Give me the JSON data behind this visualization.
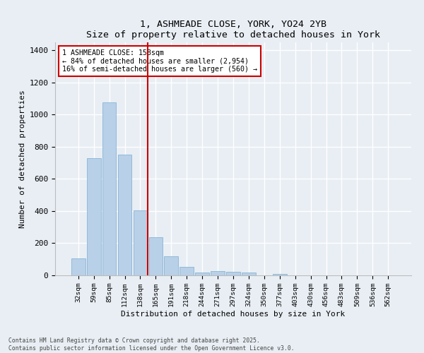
{
  "title1": "1, ASHMEADE CLOSE, YORK, YO24 2YB",
  "title2": "Size of property relative to detached houses in York",
  "xlabel": "Distribution of detached houses by size in York",
  "ylabel": "Number of detached properties",
  "categories": [
    "32sqm",
    "59sqm",
    "85sqm",
    "112sqm",
    "138sqm",
    "165sqm",
    "191sqm",
    "218sqm",
    "244sqm",
    "271sqm",
    "297sqm",
    "324sqm",
    "350sqm",
    "377sqm",
    "403sqm",
    "430sqm",
    "456sqm",
    "483sqm",
    "509sqm",
    "536sqm",
    "562sqm"
  ],
  "values": [
    105,
    730,
    1075,
    750,
    405,
    238,
    118,
    53,
    18,
    28,
    22,
    18,
    0,
    8,
    0,
    0,
    0,
    0,
    0,
    0,
    0
  ],
  "bar_color": "#b8d0e8",
  "bar_edge_color": "#7aadd0",
  "vline_color": "#cc0000",
  "annotation_title": "1 ASHMEADE CLOSE: 158sqm",
  "annotation_line1": "← 84% of detached houses are smaller (2,954)",
  "annotation_line2": "16% of semi-detached houses are larger (560) →",
  "annotation_box_color": "#cc0000",
  "ylim": [
    0,
    1450
  ],
  "yticks": [
    0,
    200,
    400,
    600,
    800,
    1000,
    1200,
    1400
  ],
  "footer1": "Contains HM Land Registry data © Crown copyright and database right 2025.",
  "footer2": "Contains public sector information licensed under the Open Government Licence v3.0.",
  "bg_color": "#e8eef4",
  "grid_color": "#ffffff",
  "vline_xindex": 4.5
}
